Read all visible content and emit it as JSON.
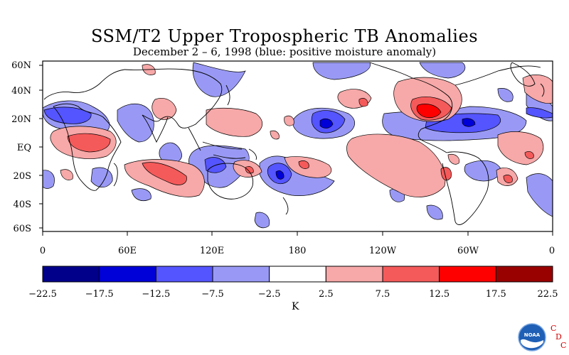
{
  "title": "SSM/T2 Upper Tropospheric TB Anomalies",
  "subtitle": "December 2 – 6, 1998 (blue: positive moisture anomaly)",
  "lat_labels": [
    "60N",
    "40N",
    "20N",
    "EQ",
    "20S",
    "40S",
    "60S"
  ],
  "lon_labels": [
    "0",
    "60E",
    "120E",
    "180",
    "120W",
    "60W",
    "0"
  ],
  "colorbar": {
    "levels": [
      "−22.5",
      "−17.5",
      "−12.5",
      "−7.5",
      "−2.5",
      "2.5",
      "7.5",
      "12.5",
      "17.5",
      "22.5"
    ],
    "colors": [
      "#00008b",
      "#0000d8",
      "#5555ff",
      "#9999f5",
      "#ffffff",
      "#f7a8a8",
      "#f55a5a",
      "#ff0000",
      "#990000"
    ],
    "unit": "K"
  },
  "colors": {
    "blue_light": "#9999f5",
    "blue_mid": "#5555ff",
    "blue_dark": "#0000d8",
    "red_light": "#f7a8a8",
    "red_mid": "#f55a5a",
    "red_dark": "#ff0000"
  },
  "logo": {
    "agency": "NOAA",
    "letters": [
      "C",
      "D",
      "C"
    ]
  }
}
